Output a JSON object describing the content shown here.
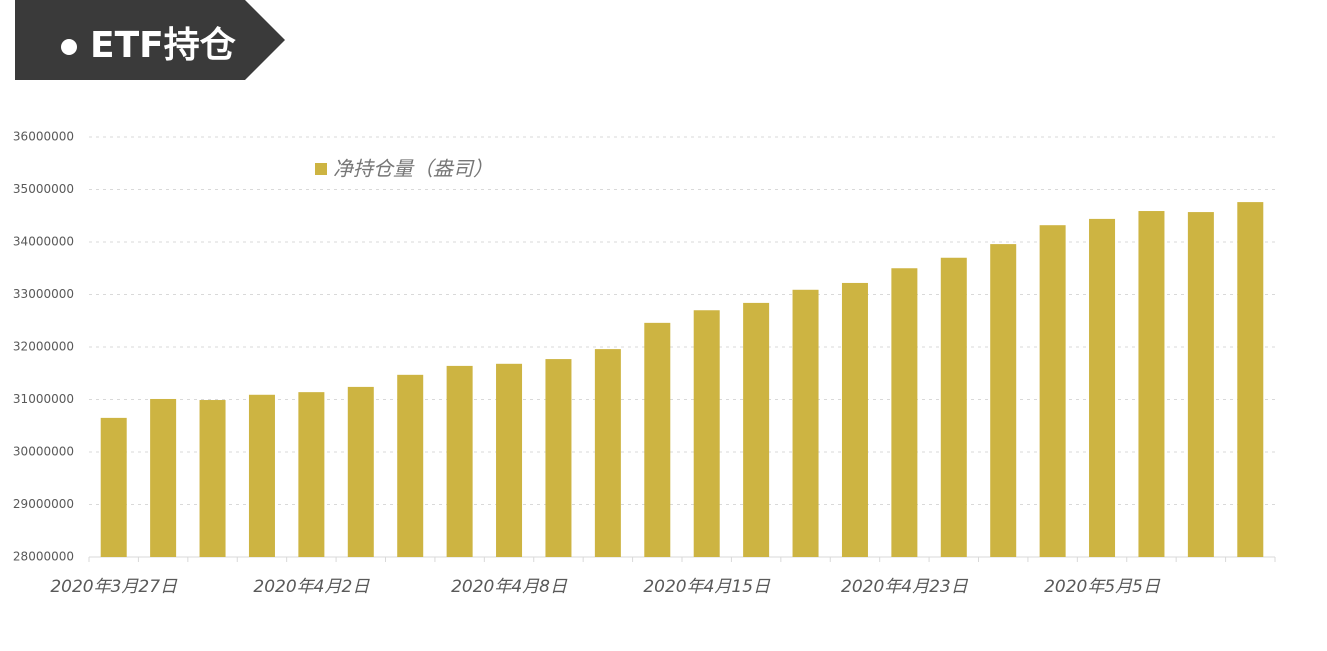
{
  "chart_data": {
    "type": "bar",
    "title": "ETF持仓",
    "categories": [
      "2020年3月27日",
      null,
      null,
      null,
      "2020年4月2日",
      null,
      null,
      null,
      "2020年4月8日",
      null,
      null,
      null,
      "2020年4月15日",
      null,
      null,
      null,
      "2020年4月23日",
      null,
      null,
      null,
      "2020年5月5日",
      null,
      null,
      null
    ],
    "series": [
      {
        "name": "净持仓量（盎司）",
        "color": "#cdb442",
        "values": [
          30650000,
          31010000,
          30990000,
          31090000,
          31140000,
          31240000,
          31470000,
          31640000,
          31680000,
          31770000,
          31960000,
          32460000,
          32700000,
          32840000,
          33090000,
          33220000,
          33500000,
          33700000,
          33960000,
          34320000,
          34440000,
          34590000,
          34570000,
          34760000
        ]
      }
    ],
    "ylim": [
      28000000,
      36000000
    ],
    "yticks": [
      28000000,
      29000000,
      30000000,
      31000000,
      32000000,
      33000000,
      34000000,
      35000000,
      36000000
    ],
    "grid": true,
    "legend": "top-left"
  }
}
